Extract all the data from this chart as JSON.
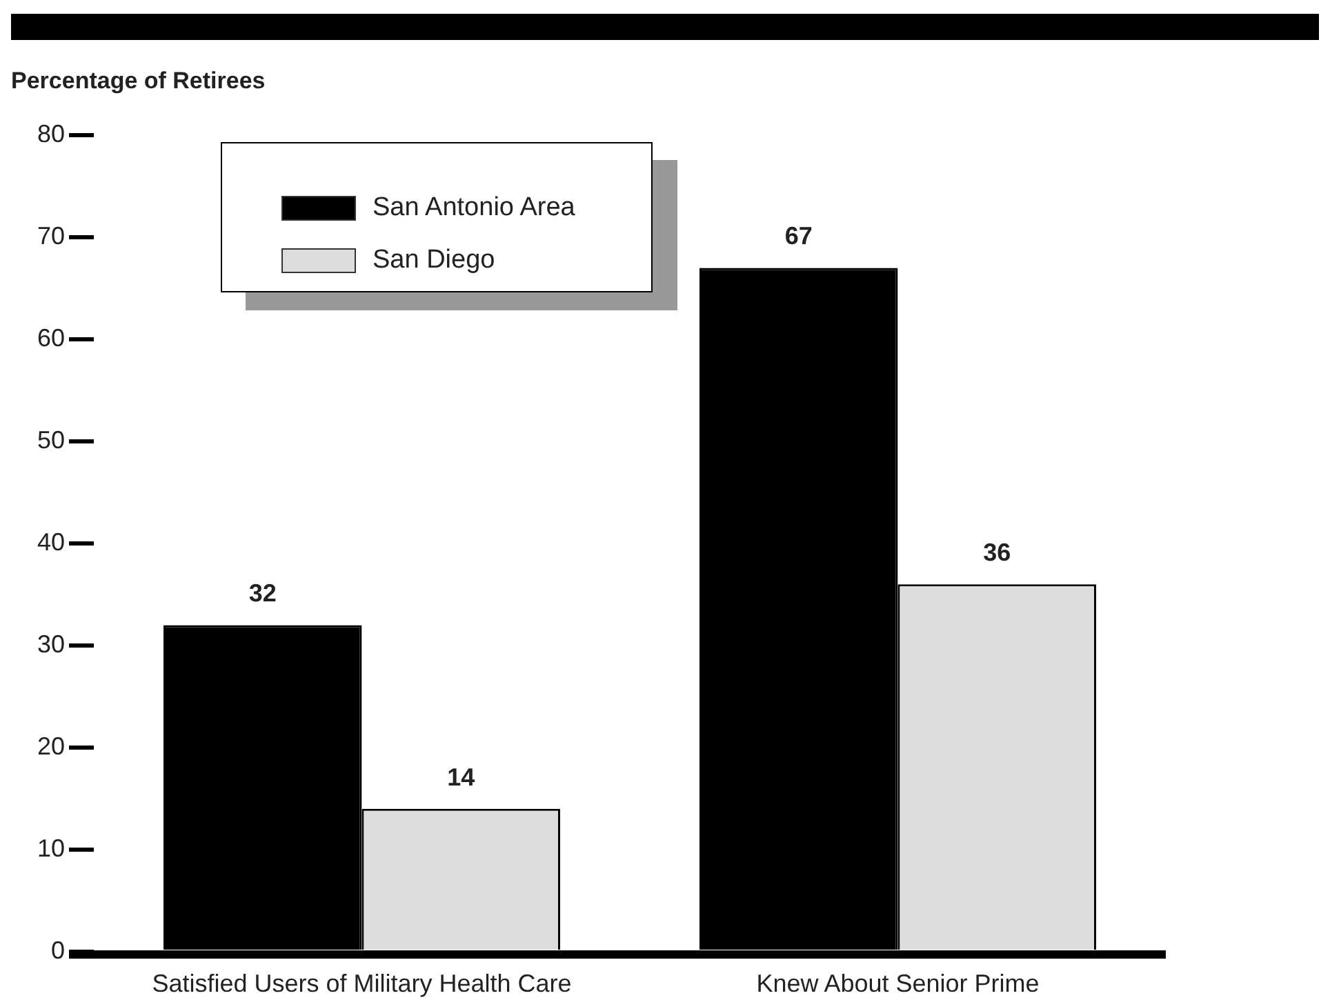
{
  "chart_data": {
    "type": "bar",
    "ylabel": "Percentage of Retirees",
    "categories": [
      "Satisfied Users of Military Health Care",
      "Knew About Senior Prime"
    ],
    "series": [
      {
        "name": "San Antonio Area",
        "color": "#000000",
        "values": [
          32,
          67
        ]
      },
      {
        "name": "San Diego",
        "color": "#dddddd",
        "values": [
          14,
          36
        ]
      }
    ],
    "ylim": [
      0,
      80
    ],
    "yticks": [
      0,
      10,
      20,
      30,
      40,
      50,
      60,
      70,
      80
    ],
    "grid": false,
    "legend": "top left",
    "data_labels": true
  }
}
